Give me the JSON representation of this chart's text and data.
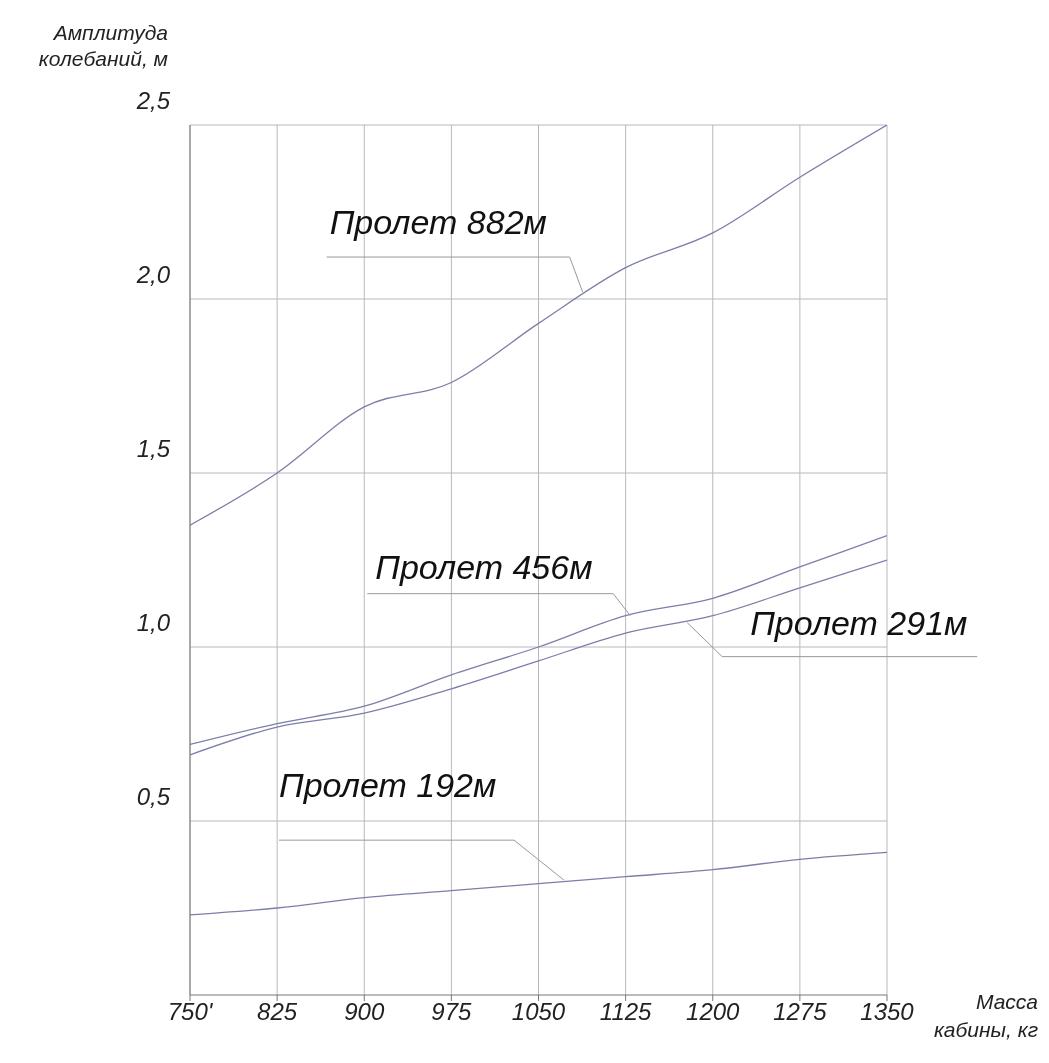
{
  "chart_data": {
    "type": "line",
    "xlabel": "Масса кабины, кг",
    "ylabel": "Амплитуда колебаний, м",
    "x": [
      750,
      825,
      900,
      975,
      1050,
      1125,
      1200,
      1275,
      1350
    ],
    "series": [
      {
        "color": "#7b7fa8",
        "values": [
          1.35,
          1.5,
          1.69,
          1.76,
          1.93,
          2.09,
          2.19,
          2.35,
          2.5
        ]
      },
      {
        "color": "#7b7fa8",
        "values": [
          0.72,
          0.78,
          0.83,
          0.92,
          1.0,
          1.09,
          1.14,
          1.23,
          1.32
        ]
      },
      {
        "color": "#7b7fa8",
        "values": [
          0.69,
          0.77,
          0.81,
          0.88,
          0.96,
          1.04,
          1.09,
          1.17,
          1.25
        ]
      },
      {
        "color": "#7b7fa8",
        "values": [
          0.23,
          0.25,
          0.28,
          0.3,
          0.32,
          0.34,
          0.36,
          0.39,
          0.41
        ]
      }
    ],
    "annotations": [
      {
        "text": "Пролет 882м",
        "x": 1088,
        "y": 2.02
      },
      {
        "text": "Пролет 456м",
        "x": 1129,
        "y": 1.09
      },
      {
        "text": "Пролет 291м",
        "x": 1178,
        "y": 1.07
      },
      {
        "text": "Пролет 192м",
        "x": 1072,
        "y": 0.33
      }
    ],
    "xlim": [
      750,
      1350
    ],
    "xticks": [
      {
        "value": 750,
        "label": "750'"
      },
      825,
      900,
      975,
      1050,
      1125,
      1200,
      1275,
      1350
    ],
    "ylim": [
      0,
      2.5
    ],
    "yticks": [
      {
        "value": 0.5,
        "label": "0,5"
      },
      {
        "value": 1.0,
        "label": "1,0"
      },
      {
        "value": 1.5,
        "label": "1,5"
      },
      {
        "value": 2.0,
        "label": "2,0"
      },
      {
        "value": 2.5,
        "label": "2,5"
      }
    ],
    "grid": true,
    "marker": "none",
    "line_style": "solid"
  }
}
